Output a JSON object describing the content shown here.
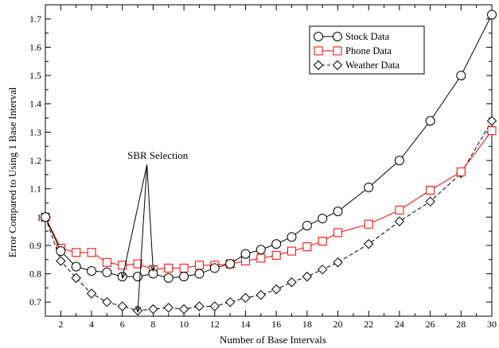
{
  "chart_data": {
    "type": "line",
    "title": "",
    "xlabel": "Number of Base Intervals",
    "ylabel": "Error Compared to Using 1 Base Interval",
    "xlim": [
      1,
      30
    ],
    "ylim": [
      0.65,
      1.75
    ],
    "xticks": [
      2,
      4,
      6,
      8,
      10,
      12,
      14,
      16,
      18,
      20,
      22,
      24,
      26,
      28,
      30
    ],
    "yticks": [
      0.7,
      0.8,
      0.9,
      1.0,
      1.1,
      1.2,
      1.3,
      1.4,
      1.5,
      1.6,
      1.7
    ],
    "ytick_labels": [
      "0.7",
      "0.8",
      "0.9",
      "1",
      "1.1",
      "1.2",
      "1.3",
      "1.4",
      "1.5",
      "1.6",
      "1.7"
    ],
    "grid": false,
    "legend_position": "top-right",
    "series": [
      {
        "name": "Stock Data",
        "color": "#000000",
        "marker": "circle",
        "line_style": "solid",
        "x": [
          1,
          2,
          3,
          4,
          5,
          6,
          7,
          8,
          9,
          10,
          11,
          12,
          13,
          14,
          15,
          16,
          17,
          18,
          19,
          20,
          22,
          24,
          26,
          28,
          30
        ],
        "y": [
          1.0,
          0.88,
          0.825,
          0.81,
          0.805,
          0.79,
          0.79,
          0.8,
          0.785,
          0.79,
          0.8,
          0.82,
          0.835,
          0.87,
          0.885,
          0.905,
          0.93,
          0.97,
          0.995,
          1.02,
          1.105,
          1.2,
          1.34,
          1.5,
          1.715
        ]
      },
      {
        "name": "Phone Data",
        "color": "#ff0000",
        "marker": "square",
        "line_style": "solid",
        "x": [
          1,
          2,
          3,
          4,
          5,
          6,
          7,
          8,
          9,
          10,
          11,
          12,
          13,
          14,
          15,
          16,
          17,
          18,
          19,
          20,
          22,
          24,
          26,
          28,
          30
        ],
        "y": [
          1.0,
          0.89,
          0.875,
          0.875,
          0.84,
          0.83,
          0.835,
          0.815,
          0.82,
          0.82,
          0.83,
          0.83,
          0.835,
          0.845,
          0.855,
          0.865,
          0.88,
          0.895,
          0.915,
          0.945,
          0.975,
          1.025,
          1.095,
          1.16,
          1.305
        ]
      },
      {
        "name": "Weather Data",
        "color": "#000000",
        "marker": "diamond",
        "line_style": "dashed",
        "x": [
          1,
          2,
          3,
          4,
          5,
          6,
          7,
          8,
          9,
          10,
          11,
          12,
          13,
          14,
          15,
          16,
          17,
          18,
          19,
          20,
          22,
          24,
          26,
          28,
          30
        ],
        "y": [
          1.0,
          0.845,
          0.785,
          0.73,
          0.7,
          0.685,
          0.67,
          0.675,
          0.68,
          0.675,
          0.685,
          0.685,
          0.7,
          0.715,
          0.725,
          0.745,
          0.77,
          0.79,
          0.815,
          0.84,
          0.905,
          0.985,
          1.055,
          1.155,
          1.34
        ]
      }
    ],
    "annotation": {
      "text": "SBR Selection",
      "anchor": [
        8.3,
        1.205
      ],
      "targets": [
        [
          6,
          0.785
        ],
        [
          7,
          0.665
        ],
        [
          8,
          0.81
        ]
      ]
    }
  }
}
